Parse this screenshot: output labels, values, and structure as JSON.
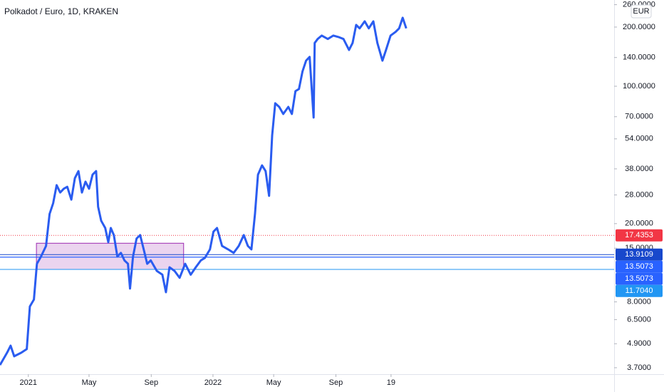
{
  "chart_data": {
    "type": "line",
    "title": "Polkadot / Euro, 1D, KRAKEN",
    "currency": "EUR",
    "log_scale": true,
    "grid": false,
    "color": "#2a5cf0",
    "x": [
      -56,
      -42,
      -35,
      -28,
      -14,
      -3,
      3,
      11,
      17,
      25,
      35,
      42,
      49,
      56,
      63,
      70,
      77,
      85,
      92,
      99,
      106,
      113,
      120,
      127,
      134,
      138,
      144,
      152,
      158,
      163,
      169,
      176,
      183,
      190,
      197,
      201,
      207,
      214,
      221,
      228,
      235,
      242,
      254,
      265,
      272,
      279,
      289,
      299,
      310,
      321,
      331,
      341,
      349,
      359,
      366,
      373,
      383,
      395,
      406,
      416,
      426,
      434,
      441,
      448,
      454,
      462,
      469,
      476,
      482,
      488,
      496,
      504,
      514,
      521,
      528,
      535,
      542,
      549,
      556,
      564,
      566,
      572,
      580,
      592,
      603,
      613,
      623,
      634,
      641,
      648,
      655,
      665,
      673,
      682,
      690,
      700,
      707,
      716,
      726,
      733,
      740,
      747
    ],
    "values": [
      3.82,
      4.41,
      4.79,
      4.23,
      4.41,
      4.6,
      7.58,
      8.23,
      12.5,
      13.6,
      15.4,
      22.4,
      25.4,
      31.4,
      28.8,
      30.1,
      30.8,
      26.5,
      34.1,
      37.0,
      28.8,
      32.7,
      30.1,
      35.5,
      37.0,
      24.4,
      20.7,
      19.0,
      16.1,
      19.0,
      17.5,
      13.6,
      14.2,
      13.0,
      12.5,
      9.35,
      13.6,
      16.8,
      17.5,
      14.8,
      12.5,
      13.0,
      11.5,
      11.0,
      8.96,
      12.0,
      11.5,
      10.6,
      12.5,
      11.0,
      12.0,
      13.0,
      13.4,
      14.8,
      18.2,
      19.0,
      15.4,
      14.8,
      14.2,
      15.4,
      17.5,
      15.4,
      14.8,
      22.4,
      35.5,
      39.6,
      37.0,
      27.7,
      56.2,
      81.9,
      78.5,
      72.3,
      78.5,
      72.3,
      94.4,
      96.8,
      119,
      135,
      141,
      69.3,
      166,
      174,
      181,
      174,
      181,
      178,
      174,
      153,
      166,
      205,
      197,
      214,
      197,
      214,
      166,
      135,
      153,
      181,
      189,
      197,
      223,
      197
    ],
    "xlim": [
      -56,
      1158
    ],
    "xticks": [
      {
        "value": 0,
        "label": "2021"
      },
      {
        "value": 120,
        "label": "May"
      },
      {
        "value": 243,
        "label": "Sep"
      },
      {
        "value": 365,
        "label": "2022"
      },
      {
        "value": 485,
        "label": "May"
      },
      {
        "value": 608,
        "label": "Sep"
      },
      {
        "value": 717,
        "label": "19"
      }
    ],
    "ylim": [
      3.43,
      274.6
    ],
    "yticks": [
      {
        "value": 260,
        "label": "260.0000"
      },
      {
        "value": 200,
        "label": "200.0000"
      },
      {
        "value": 140,
        "label": "140.0000"
      },
      {
        "value": 100,
        "label": "100.0000"
      },
      {
        "value": 70,
        "label": "70.0000"
      },
      {
        "value": 54,
        "label": "54.0000"
      },
      {
        "value": 38,
        "label": "38.0000"
      },
      {
        "value": 28,
        "label": "28.0000"
      },
      {
        "value": 20,
        "label": "20.0000"
      },
      {
        "value": 15,
        "label": "15.0000"
      },
      {
        "value": 8,
        "label": "8.0000"
      },
      {
        "value": 6.5,
        "label": "6.5000"
      },
      {
        "value": 4.9,
        "label": "4.9000"
      },
      {
        "value": 3.7,
        "label": "3.7000"
      }
    ],
    "price_lines": [
      {
        "value": 17.4353,
        "color": "#f23645",
        "dotted": true
      },
      {
        "value": 13.9109,
        "color": "#1848cc"
      },
      {
        "value": 13.5073,
        "color": "#2962ff"
      },
      {
        "value": 13.5073,
        "color": "#2962ff"
      },
      {
        "value": 11.704,
        "label": "11.7040",
        "color": "#2196f3"
      }
    ],
    "rectangle": {
      "x": [
        16,
        307
      ],
      "y": [
        11.7,
        15.9
      ],
      "color": "#9c27b0"
    }
  }
}
